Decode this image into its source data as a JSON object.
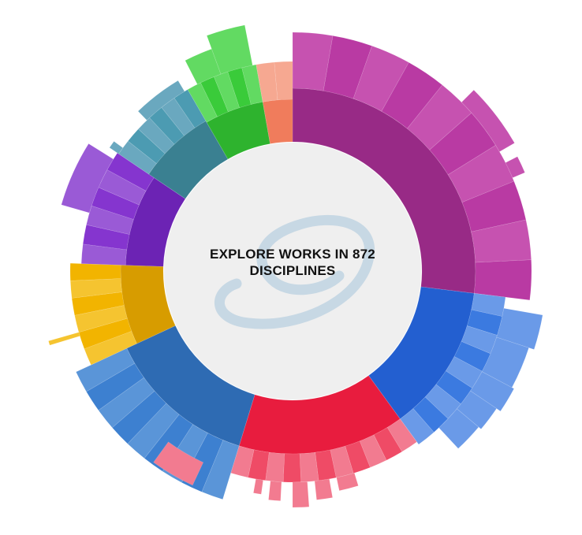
{
  "center": {
    "line1": "EXPLORE WORKS IN 872",
    "line2": "DISCIPLINES"
  },
  "center_logo_icon": "stylized-d-swoosh-logo",
  "colors": {
    "center_fill": "#efefef",
    "logo": "#c7d8e4"
  },
  "disciplines": [
    {
      "id": "magenta",
      "inner": "#982a86",
      "outer": "#b93aa3",
      "light": "#c652b0"
    },
    {
      "id": "blue",
      "inner": "#235fd0",
      "outer": "#3b7ae0",
      "light": "#6a9ae8"
    },
    {
      "id": "red",
      "inner": "#e81c3e",
      "outer": "#ef4b66",
      "light": "#f27b90"
    },
    {
      "id": "steel-blue",
      "inner": "#2e6bb3",
      "outer": "#3d80d0",
      "light": "#5a95d8"
    },
    {
      "id": "amber",
      "inner": "#d79c00",
      "outer": "#f2b400",
      "light": "#f5c430"
    },
    {
      "id": "purple",
      "inner": "#6c23b4",
      "outer": "#8535cf",
      "light": "#9a5ad6"
    },
    {
      "id": "teal",
      "inner": "#3a8091",
      "outer": "#4c9bb2",
      "light": "#6aa8bf"
    },
    {
      "id": "green",
      "inner": "#2eb32e",
      "outer": "#3acb3a",
      "light": "#62da62"
    },
    {
      "id": "salmon",
      "inner": "#f07c5c",
      "outer": "#f6a891",
      "light": "#f6a891"
    }
  ]
}
